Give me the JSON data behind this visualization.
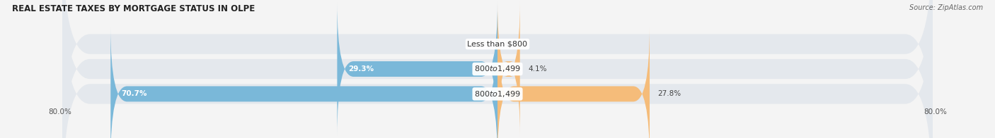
{
  "title": "REAL ESTATE TAXES BY MORTGAGE STATUS IN OLPE",
  "source": "Source: ZipAtlas.com",
  "rows": [
    {
      "label": "Less than $800",
      "without_mortgage": 0.0,
      "with_mortgage": 0.0
    },
    {
      "label": "$800 to $1,499",
      "without_mortgage": 29.3,
      "with_mortgage": 4.1
    },
    {
      "label": "$800 to $1,499",
      "without_mortgage": 70.7,
      "with_mortgage": 27.8
    }
  ],
  "x_min": -80.0,
  "x_max": 80.0,
  "x_tick_labels_left": "80.0%",
  "x_tick_labels_right": "80.0%",
  "color_without": "#7ab8d9",
  "color_with": "#f5bc7a",
  "color_row_bg": "#e4e8ed",
  "bar_height": 0.62,
  "background_fig": "#f4f4f4",
  "title_fontsize": 8.5,
  "source_fontsize": 7.0,
  "value_fontsize": 7.5,
  "label_fontsize": 8.0,
  "tick_fontsize": 7.5,
  "legend_fontsize": 8.0
}
